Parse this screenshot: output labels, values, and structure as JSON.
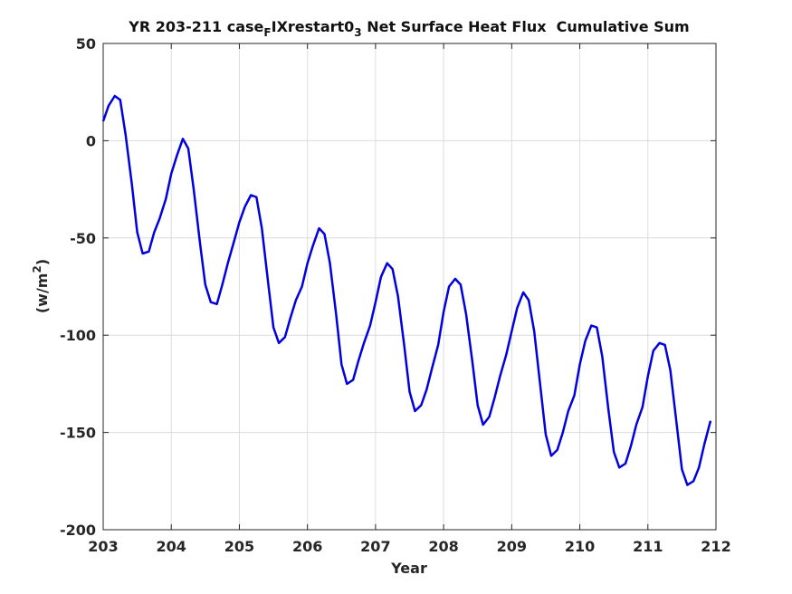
{
  "chart_data": {
    "type": "line",
    "title_parts": {
      "prefix": "YR 203-211 case",
      "sub1": "F",
      "middle": "IXrestart0",
      "sub2": "3",
      "suffix": " Net Surface Heat Flux  Cumulative Sum"
    },
    "xlabel": "Year",
    "ylabel_parts": {
      "base": "(w/m",
      "sup": "2",
      "close": ")"
    },
    "xlim": [
      203,
      212
    ],
    "ylim": [
      -200,
      50
    ],
    "xticks": [
      "203",
      "204",
      "205",
      "206",
      "207",
      "208",
      "209",
      "210",
      "211",
      "212"
    ],
    "yticks": [
      "50",
      "0",
      "-50",
      "-100",
      "-150",
      "-200"
    ],
    "grid": true,
    "series_color": "#0000e0",
    "x": [
      203.0,
      203.08,
      203.17,
      203.25,
      203.33,
      203.42,
      203.5,
      203.58,
      203.67,
      203.75,
      203.83,
      203.92,
      204.0,
      204.08,
      204.17,
      204.25,
      204.33,
      204.42,
      204.5,
      204.58,
      204.67,
      204.75,
      204.83,
      204.92,
      205.0,
      205.08,
      205.17,
      205.25,
      205.33,
      205.42,
      205.5,
      205.58,
      205.67,
      205.75,
      205.83,
      205.92,
      206.0,
      206.08,
      206.17,
      206.25,
      206.33,
      206.42,
      206.5,
      206.58,
      206.67,
      206.75,
      206.83,
      206.92,
      207.0,
      207.08,
      207.17,
      207.25,
      207.33,
      207.42,
      207.5,
      207.58,
      207.67,
      207.75,
      207.83,
      207.92,
      208.0,
      208.08,
      208.17,
      208.25,
      208.33,
      208.42,
      208.5,
      208.58,
      208.67,
      208.75,
      208.83,
      208.92,
      209.0,
      209.08,
      209.17,
      209.25,
      209.33,
      209.42,
      209.5,
      209.58,
      209.67,
      209.75,
      209.83,
      209.92,
      210.0,
      210.08,
      210.17,
      210.25,
      210.33,
      210.42,
      210.5,
      210.58,
      210.67,
      210.75,
      210.83,
      210.92,
      211.0,
      211.08,
      211.17,
      211.25,
      211.33,
      211.42,
      211.5,
      211.58,
      211.67,
      211.75,
      211.83,
      211.92
    ],
    "y": [
      10,
      18,
      23,
      21,
      3,
      -22,
      -47,
      -58,
      -57,
      -47,
      -40,
      -30,
      -17,
      -8,
      1,
      -4,
      -25,
      -52,
      -74,
      -83,
      -84,
      -74,
      -63,
      -52,
      -42,
      -34,
      -28,
      -29,
      -45,
      -72,
      -96,
      -104,
      -101,
      -91,
      -82,
      -75,
      -63,
      -54,
      -45,
      -48,
      -63,
      -89,
      -115,
      -125,
      -123,
      -113,
      -104,
      -95,
      -83,
      -70,
      -63,
      -66,
      -80,
      -105,
      -129,
      -139,
      -136,
      -128,
      -117,
      -105,
      -88,
      -75,
      -71,
      -74,
      -89,
      -113,
      -136,
      -146,
      -142,
      -132,
      -121,
      -110,
      -98,
      -86,
      -78,
      -82,
      -98,
      -126,
      -151,
      -162,
      -159,
      -150,
      -139,
      -131,
      -115,
      -103,
      -95,
      -96,
      -111,
      -138,
      -160,
      -168,
      -166,
      -157,
      -146,
      -137,
      -121,
      -108,
      -104,
      -105,
      -118,
      -145,
      -169,
      -177,
      -175,
      -168,
      -156,
      -144
    ]
  }
}
